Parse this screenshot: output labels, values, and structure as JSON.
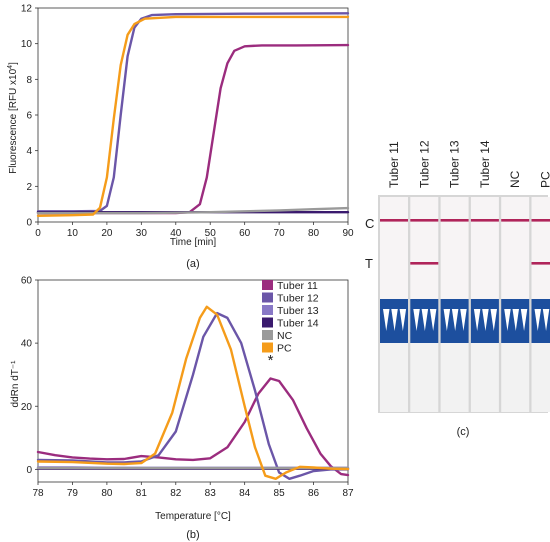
{
  "chart_data": [
    {
      "panel": "(a)",
      "type": "line",
      "xlabel": "Time [min]",
      "ylabel": "Fluorescence [RFU x10",
      "ylabel_sup": "4",
      "ylabel_end": "]",
      "xlim": [
        0,
        90
      ],
      "ylim": [
        0,
        12
      ],
      "xticks": [
        "0",
        "10",
        "20",
        "30",
        "40",
        "50",
        "60",
        "70",
        "80",
        "90"
      ],
      "yticks": [
        "0",
        "2",
        "4",
        "6",
        "8",
        "10",
        "12"
      ],
      "grid": false,
      "series": [
        {
          "color": "#9b2c7e",
          "points": [
            [
              0,
              0.5
            ],
            [
              10,
              0.5
            ],
            [
              20,
              0.5
            ],
            [
              30,
              0.5
            ],
            [
              40,
              0.5
            ],
            [
              44,
              0.55
            ],
            [
              47,
              1.0
            ],
            [
              49,
              2.5
            ],
            [
              51,
              5.0
            ],
            [
              53,
              7.5
            ],
            [
              55,
              8.9
            ],
            [
              57,
              9.6
            ],
            [
              60,
              9.85
            ],
            [
              65,
              9.9
            ],
            [
              75,
              9.9
            ],
            [
              90,
              9.92
            ]
          ]
        },
        {
          "color": "#6b56a8",
          "points": [
            [
              0,
              0.6
            ],
            [
              10,
              0.6
            ],
            [
              18,
              0.62
            ],
            [
              20,
              0.9
            ],
            [
              22,
              2.5
            ],
            [
              24,
              6.0
            ],
            [
              26,
              9.3
            ],
            [
              28,
              10.9
            ],
            [
              30,
              11.4
            ],
            [
              33,
              11.6
            ],
            [
              40,
              11.65
            ],
            [
              60,
              11.68
            ],
            [
              90,
              11.7
            ]
          ]
        },
        {
          "color": "#3a1a6e",
          "points": [
            [
              0,
              0.55
            ],
            [
              10,
              0.55
            ],
            [
              20,
              0.55
            ],
            [
              30,
              0.55
            ],
            [
              40,
              0.55
            ],
            [
              50,
              0.55
            ],
            [
              60,
              0.55
            ],
            [
              70,
              0.55
            ],
            [
              80,
              0.55
            ],
            [
              90,
              0.55
            ]
          ]
        },
        {
          "color": "#9a9a9a",
          "points": [
            [
              0,
              0.5
            ],
            [
              10,
              0.5
            ],
            [
              20,
              0.5
            ],
            [
              30,
              0.5
            ],
            [
              40,
              0.52
            ],
            [
              50,
              0.55
            ],
            [
              60,
              0.6
            ],
            [
              70,
              0.65
            ],
            [
              80,
              0.72
            ],
            [
              90,
              0.78
            ]
          ]
        },
        {
          "color": "#f59c1a",
          "points": [
            [
              0,
              0.35
            ],
            [
              10,
              0.38
            ],
            [
              16,
              0.42
            ],
            [
              18,
              0.8
            ],
            [
              20,
              2.5
            ],
            [
              22,
              5.8
            ],
            [
              24,
              8.8
            ],
            [
              26,
              10.5
            ],
            [
              28,
              11.1
            ],
            [
              31,
              11.4
            ],
            [
              40,
              11.5
            ],
            [
              60,
              11.5
            ],
            [
              90,
              11.5
            ]
          ]
        }
      ]
    },
    {
      "panel": "(b)",
      "type": "line",
      "xlabel": "Temperature [°C]",
      "ylabel": "ddRn dT⁻¹",
      "xlim": [
        78,
        87
      ],
      "ylim": [
        -4,
        60
      ],
      "xticks": [
        "78",
        "79",
        "80",
        "81",
        "82",
        "83",
        "84",
        "85",
        "86",
        "87"
      ],
      "yticks": [
        "0",
        "20",
        "40",
        "60"
      ],
      "grid": false,
      "legend_position": "top-right",
      "annotation": "*",
      "annotation_at": [
        84.75,
        33
      ],
      "series": [
        {
          "name": "Tuber 11",
          "color": "#9b2c7e",
          "points": [
            [
              78,
              5.5
            ],
            [
              78.5,
              4.5
            ],
            [
              79,
              3.8
            ],
            [
              79.5,
              3.4
            ],
            [
              80,
              3.2
            ],
            [
              80.5,
              3.3
            ],
            [
              81,
              4.2
            ],
            [
              81.5,
              3.8
            ],
            [
              82,
              3.2
            ],
            [
              82.5,
              3.0
            ],
            [
              83,
              3.5
            ],
            [
              83.5,
              7
            ],
            [
              84,
              15
            ],
            [
              84.4,
              24
            ],
            [
              84.75,
              28.8
            ],
            [
              85,
              28
            ],
            [
              85.4,
              22
            ],
            [
              85.8,
              13
            ],
            [
              86.2,
              5
            ],
            [
              86.5,
              1
            ],
            [
              86.8,
              -1.5
            ],
            [
              87,
              -1.8
            ]
          ]
        },
        {
          "name": "Tuber 12",
          "color": "#6b56a8",
          "points": [
            [
              78,
              3
            ],
            [
              79,
              2.8
            ],
            [
              80,
              2.2
            ],
            [
              80.5,
              2.2
            ],
            [
              81,
              2.5
            ],
            [
              81.5,
              4.5
            ],
            [
              82,
              12
            ],
            [
              82.5,
              30
            ],
            [
              82.8,
              42
            ],
            [
              83.2,
              49.5
            ],
            [
              83.5,
              48
            ],
            [
              83.9,
              40
            ],
            [
              84.3,
              25
            ],
            [
              84.7,
              8
            ],
            [
              85.0,
              -1
            ],
            [
              85.3,
              -3
            ],
            [
              85.6,
              -2
            ],
            [
              86,
              -0.5
            ],
            [
              86.5,
              0
            ],
            [
              87,
              0
            ]
          ]
        },
        {
          "name": "Tuber 13",
          "color": "#8878c6",
          "points": [
            [
              78,
              0.6
            ],
            [
              79,
              0.6
            ],
            [
              80,
              0.5
            ],
            [
              81,
              0.5
            ],
            [
              82,
              0.5
            ],
            [
              83,
              0.5
            ],
            [
              84,
              0.5
            ],
            [
              85,
              0.5
            ],
            [
              86,
              0.5
            ],
            [
              87,
              0.5
            ]
          ]
        },
        {
          "name": "Tuber 14",
          "color": "#3a1a6e",
          "points": [
            [
              78,
              0.2
            ],
            [
              79,
              0.2
            ],
            [
              80,
              0.2
            ],
            [
              81,
              0.2
            ],
            [
              82,
              0.2
            ],
            [
              83,
              0.2
            ],
            [
              84,
              0.2
            ],
            [
              85,
              0.2
            ],
            [
              86,
              0.2
            ],
            [
              87,
              0.2
            ]
          ]
        },
        {
          "name": "NC",
          "color": "#9a9a9a",
          "points": [
            [
              78,
              0.4
            ],
            [
              79,
              0.4
            ],
            [
              80,
              0.4
            ],
            [
              81,
              0.4
            ],
            [
              82,
              0.4
            ],
            [
              83,
              0.4
            ],
            [
              84,
              0.4
            ],
            [
              85,
              0.4
            ],
            [
              86,
              0.4
            ],
            [
              87,
              0.4
            ]
          ]
        },
        {
          "name": "PC",
          "color": "#f59c1a",
          "points": [
            [
              78,
              2.5
            ],
            [
              79,
              2.3
            ],
            [
              80,
              1.8
            ],
            [
              80.5,
              1.7
            ],
            [
              81,
              2.0
            ],
            [
              81.4,
              5
            ],
            [
              81.9,
              18
            ],
            [
              82.3,
              35
            ],
            [
              82.7,
              48
            ],
            [
              82.9,
              51.5
            ],
            [
              83.2,
              49
            ],
            [
              83.6,
              38
            ],
            [
              84.0,
              20
            ],
            [
              84.3,
              7
            ],
            [
              84.6,
              -2
            ],
            [
              84.9,
              -3
            ],
            [
              85.2,
              -1
            ],
            [
              85.6,
              0.8
            ],
            [
              86,
              0.6
            ],
            [
              86.5,
              0.2
            ],
            [
              87,
              0.1
            ]
          ]
        }
      ]
    }
  ],
  "panel_c": {
    "label": "(c)",
    "row_labels": {
      "control": "C",
      "test": "T"
    },
    "strips": [
      {
        "label": "Tuber 11",
        "control": true,
        "test": false
      },
      {
        "label": "Tuber 12",
        "control": true,
        "test": true
      },
      {
        "label": "Tuber 13",
        "control": true,
        "test": false
      },
      {
        "label": "Tuber 14",
        "control": true,
        "test": false
      },
      {
        "label": "NC",
        "control": true,
        "test": false
      },
      {
        "label": "PC",
        "control": true,
        "test": true
      }
    ],
    "colors": {
      "line": "#b0245a",
      "pad": "#1d4f9e"
    }
  }
}
